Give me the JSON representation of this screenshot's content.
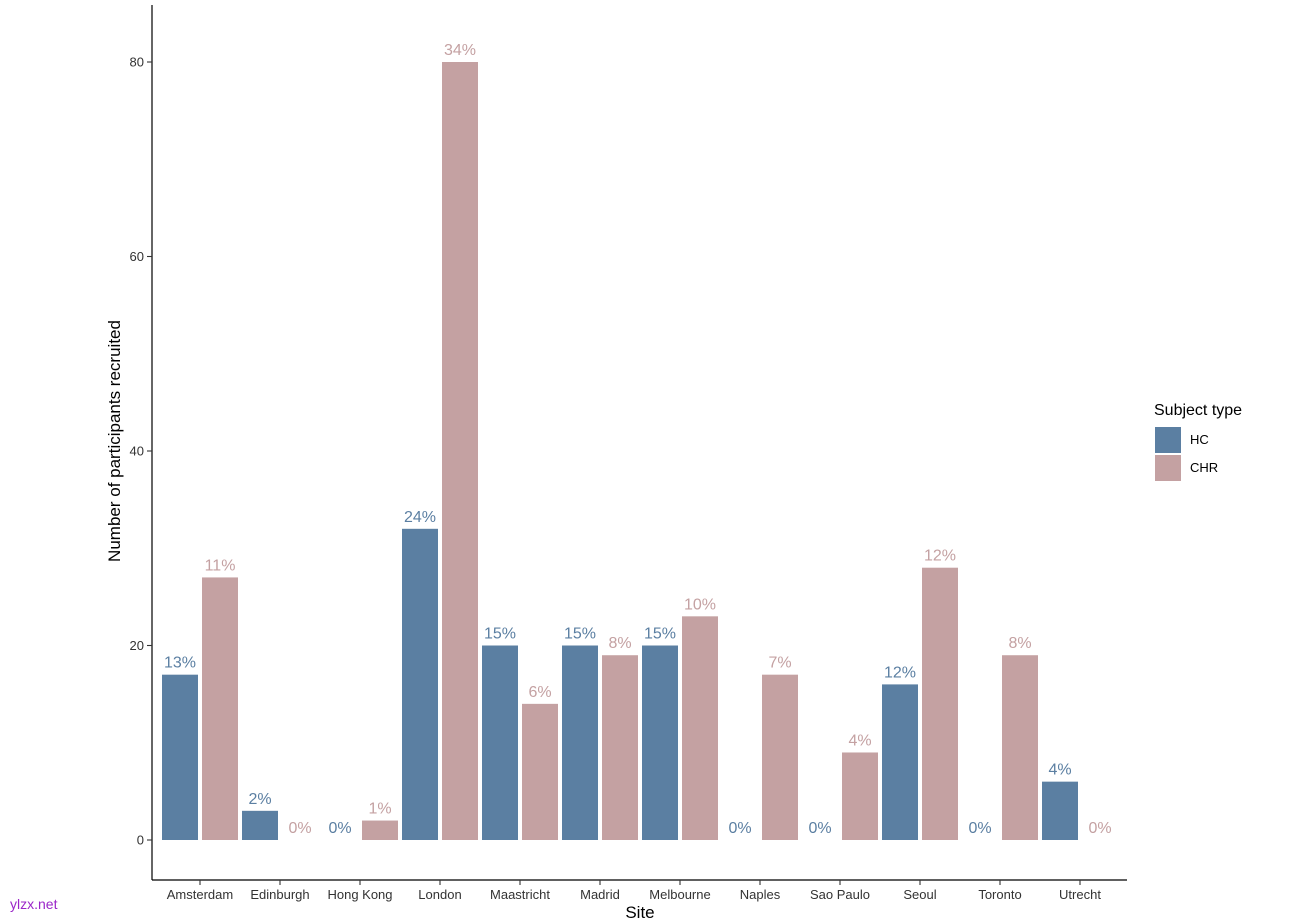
{
  "chart_data": {
    "type": "bar",
    "title": "",
    "xlabel": "Site",
    "ylabel": "Number of participants recruited",
    "ylim": [
      0,
      85
    ],
    "yticks": [
      0,
      20,
      40,
      60,
      80
    ],
    "grid": false,
    "legend_position": "right",
    "legend_title": "Subject type",
    "categories": [
      "Amsterdam",
      "Edinburgh",
      "Hong Kong",
      "London",
      "Maastricht",
      "Madrid",
      "Melbourne",
      "Naples",
      "Sao Paulo",
      "Seoul",
      "Toronto",
      "Utrecht"
    ],
    "series": [
      {
        "name": "HC",
        "color": "#5b7fa2",
        "values": [
          17,
          3,
          0,
          32,
          20,
          20,
          20,
          0,
          0,
          16,
          0,
          6
        ],
        "labels": [
          "13%",
          "2%",
          "0%",
          "24%",
          "15%",
          "15%",
          "15%",
          "0%",
          "0%",
          "12%",
          "0%",
          "4%"
        ]
      },
      {
        "name": "CHR",
        "color": "#c4a1a2",
        "values": [
          27,
          0,
          2,
          80,
          14,
          19,
          23,
          17,
          9,
          28,
          19,
          0
        ],
        "labels": [
          "11%",
          "0%",
          "1%",
          "34%",
          "6%",
          "8%",
          "10%",
          "7%",
          "4%",
          "12%",
          "8%",
          "0%"
        ]
      }
    ]
  },
  "watermark": "ylzx.net"
}
